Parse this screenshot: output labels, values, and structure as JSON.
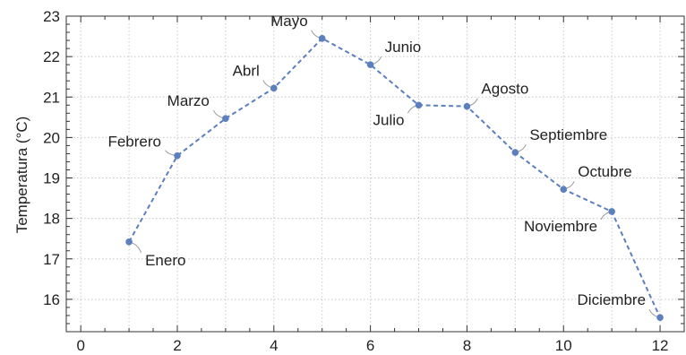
{
  "chart_data": {
    "type": "line",
    "title": "",
    "xlabel": "",
    "ylabel": "Temperatura (°C)",
    "xlim": [
      -0.3,
      12.5
    ],
    "ylim": [
      15.2,
      23.0
    ],
    "xticks": [
      0,
      2,
      4,
      6,
      8,
      10,
      12
    ],
    "yticks": [
      16,
      17,
      18,
      19,
      20,
      21,
      22,
      23
    ],
    "grid": true,
    "line_style": "dashed",
    "colors": {
      "series": "#5b7fbf",
      "grid": "#c8c8c8",
      "axis": "#333333",
      "leader": "#9a9a9a"
    },
    "series": [
      {
        "points": [
          {
            "x": 1,
            "y": 17.42,
            "label": "Enero"
          },
          {
            "x": 2,
            "y": 19.55,
            "label": "Febrero"
          },
          {
            "x": 3,
            "y": 20.47,
            "label": "Marzo"
          },
          {
            "x": 4,
            "y": 21.22,
            "label": "Abrl"
          },
          {
            "x": 5,
            "y": 22.45,
            "label": "Mayo"
          },
          {
            "x": 6,
            "y": 21.8,
            "label": "Junio"
          },
          {
            "x": 7,
            "y": 20.8,
            "label": "Julio"
          },
          {
            "x": 8,
            "y": 20.77,
            "label": "Agosto"
          },
          {
            "x": 9,
            "y": 19.63,
            "label": "Septiembre"
          },
          {
            "x": 10,
            "y": 18.72,
            "label": "Octubre"
          },
          {
            "x": 11,
            "y": 18.17,
            "label": "Noviembre"
          },
          {
            "x": 12,
            "y": 15.55,
            "label": "Diciembre"
          }
        ]
      }
    ]
  }
}
